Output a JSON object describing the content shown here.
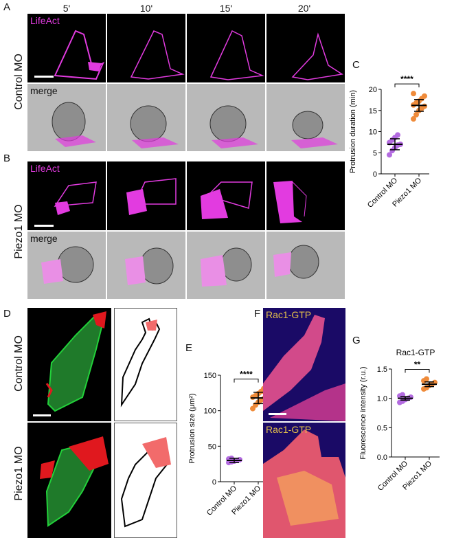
{
  "panels": {
    "A": "A",
    "B": "B",
    "C": "C",
    "D": "D",
    "E": "E",
    "F": "F",
    "G": "G"
  },
  "time_labels": [
    "5'",
    "10'",
    "15'",
    "20'"
  ],
  "row_labels": {
    "control_mo": "Control MO",
    "piezo1_mo": "Piezo1 MO"
  },
  "stains": {
    "lifeact": "LifeAct",
    "merge": "merge",
    "rac1_gtp": "Rac1-GTP"
  },
  "colors": {
    "magenta": "#e23be0",
    "green": "#22b33a",
    "red": "#e0181e",
    "control_dots": "#b36be0",
    "piezo_dots": "#ef8b3a",
    "outline_fill": "#f26b6b"
  },
  "chart_data": [
    {
      "id": "C",
      "type": "scatter",
      "categories": [
        "Control MO",
        "Piezo1 MO"
      ],
      "ylabel": "Protrusion duration (min)",
      "ylim": [
        0,
        20
      ],
      "yticks": [
        0,
        5,
        10,
        15,
        20
      ],
      "significance": "****",
      "series": [
        {
          "values": [
            4.5,
            5.5,
            6.2,
            6.8,
            7.0,
            7.4,
            8.0,
            8.6,
            9.2
          ],
          "mean": 7.0,
          "err": 1.3
        },
        {
          "values": [
            13.0,
            14.0,
            15.0,
            15.5,
            16.0,
            16.3,
            16.8,
            17.2,
            17.8,
            18.4,
            19.0
          ],
          "mean": 16.2,
          "err": 1.4
        }
      ]
    },
    {
      "id": "E",
      "type": "scatter",
      "categories": [
        "Control MO",
        "Piezo1 MO"
      ],
      "ylabel": "Protrusion size  (μm²)",
      "ylim": [
        0,
        150
      ],
      "yticks": [
        0,
        50,
        100,
        150
      ],
      "significance": "****",
      "series": [
        {
          "values": [
            27,
            28,
            29,
            30,
            31,
            32,
            33
          ],
          "mean": 30,
          "err": 3
        },
        {
          "values": [
            103,
            108,
            112,
            115,
            117,
            119,
            121,
            124,
            127,
            131
          ],
          "mean": 118,
          "err": 8
        }
      ]
    },
    {
      "id": "G",
      "type": "scatter",
      "title": "Rac1-GTP",
      "categories": [
        "Control MO",
        "Piezo1 MO"
      ],
      "ylabel": "Fluorescence intensity (r.u.)",
      "ylim": [
        0.0,
        1.5
      ],
      "yticks": [
        "0.0",
        "0.5",
        "1.0",
        "1.5"
      ],
      "significance": "**",
      "series": [
        {
          "values": [
            0.93,
            0.95,
            0.98,
            1.0,
            1.02,
            1.04,
            1.06
          ],
          "mean": 1.0,
          "err": 0.03
        },
        {
          "values": [
            1.16,
            1.18,
            1.22,
            1.24,
            1.27,
            1.3,
            1.33
          ],
          "mean": 1.24,
          "err": 0.04
        }
      ]
    }
  ]
}
